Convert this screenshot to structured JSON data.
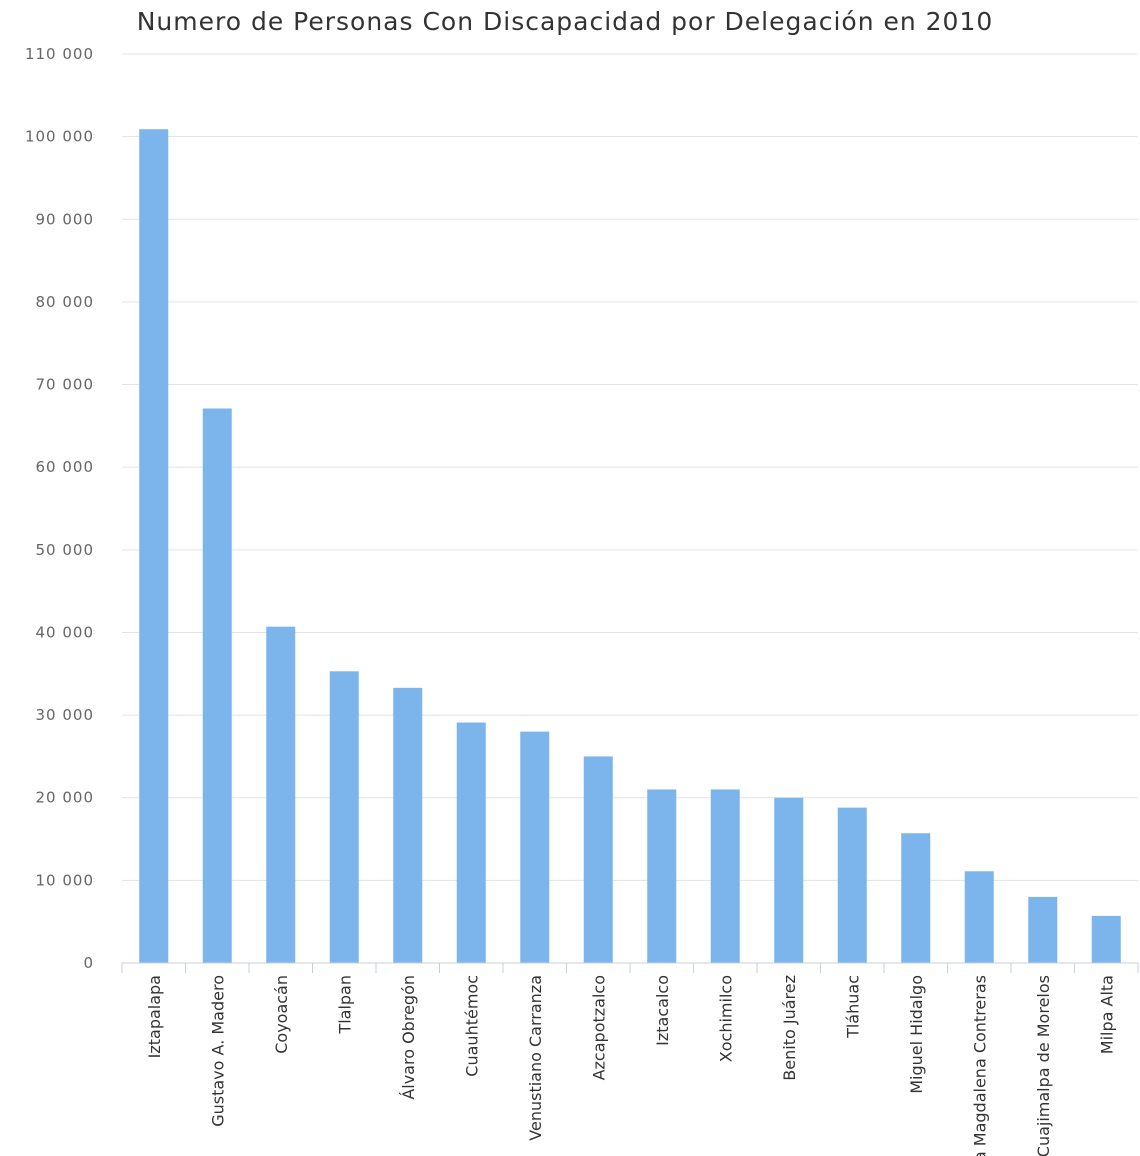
{
  "chart_data": {
    "type": "bar",
    "title": "Numero de Personas Con Discapacidad por Delegación en 2010",
    "xlabel": "",
    "ylabel": "",
    "ylim": [
      0,
      110000
    ],
    "y_ticks": [
      0,
      10000,
      20000,
      30000,
      40000,
      50000,
      60000,
      70000,
      80000,
      90000,
      100000,
      110000
    ],
    "y_tick_labels": [
      "0",
      "10 000",
      "20 000",
      "30 000",
      "40 000",
      "50 000",
      "60 000",
      "70 000",
      "80 000",
      "90 000",
      "100 000",
      "110 000"
    ],
    "categories": [
      "Iztapalapa",
      "Gustavo A. Madero",
      "Coyoacán",
      "Tlalpan",
      "Álvaro Obregón",
      "Cuauhtémoc",
      "Venustiano Carranza",
      "Azcapotzalco",
      "Iztacalco",
      "Xochimilco",
      "Benito Juárez",
      "Tláhuac",
      "Miguel Hidalgo",
      "La Magdalena Contreras",
      "Cuajimalpa de Morelos",
      "Milpa Alta"
    ],
    "values": [
      100900,
      67100,
      40700,
      35300,
      33300,
      29100,
      28000,
      25000,
      21000,
      21000,
      20000,
      18800,
      15700,
      11100,
      8000,
      5700
    ],
    "bar_color": "#7cb5ec",
    "grid": true,
    "legend": "none"
  }
}
